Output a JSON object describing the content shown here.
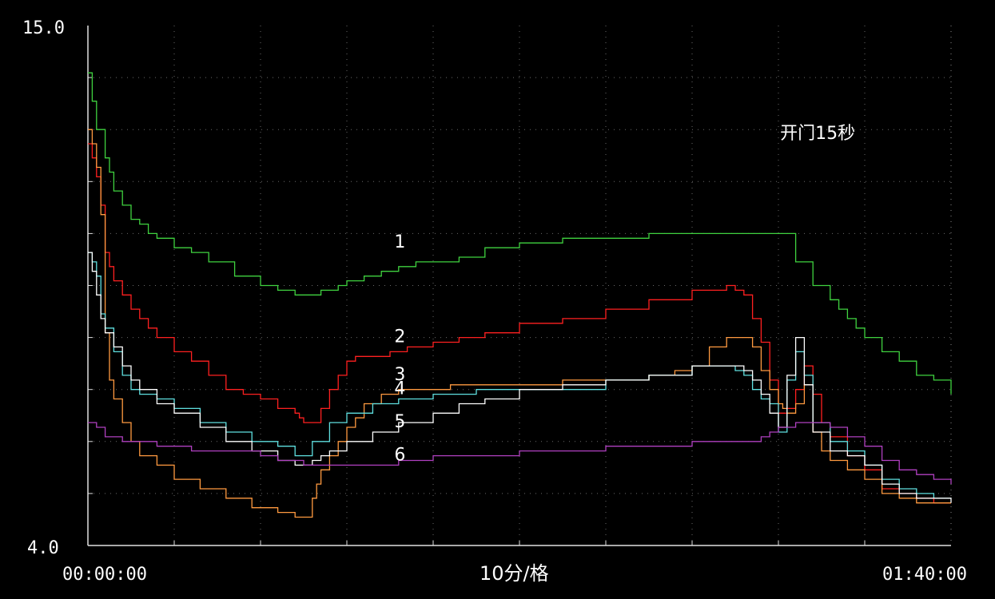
{
  "chart_data": {
    "type": "line",
    "background": "#000000",
    "grid": true,
    "ylim": [
      4.0,
      15.0
    ],
    "xlim_minutes": [
      0,
      100
    ],
    "y_top_label": "15.0",
    "y_bottom_label": "4.0",
    "x_start_label": "00:00:00",
    "x_end_label": "01:40:00",
    "x_center_label": "10分/格",
    "annotation": {
      "text": "开门15秒",
      "x": 80.2,
      "y": 12.6
    },
    "series": [
      {
        "label": "1",
        "color": "#3fd23f",
        "label_pos": [
          35.5,
          10.3
        ],
        "x": [
          0,
          0.5,
          1,
          2,
          2.5,
          3,
          4,
          5,
          6,
          7,
          8,
          10,
          12,
          14,
          17,
          20,
          22,
          24,
          25,
          26,
          27,
          28,
          29,
          30,
          31,
          32,
          34,
          36,
          38,
          40,
          43,
          46,
          50,
          55,
          60,
          65,
          70,
          75,
          80,
          82,
          84,
          86,
          87,
          88,
          89,
          90,
          92,
          94,
          96,
          98,
          100
        ],
        "y": [
          14.0,
          13.4,
          12.8,
          12.2,
          11.9,
          11.5,
          11.2,
          10.9,
          10.8,
          10.6,
          10.5,
          10.3,
          10.2,
          10.0,
          9.7,
          9.5,
          9.4,
          9.3,
          9.3,
          9.3,
          9.4,
          9.4,
          9.5,
          9.6,
          9.6,
          9.7,
          9.8,
          9.9,
          10.0,
          10.0,
          10.1,
          10.3,
          10.4,
          10.5,
          10.5,
          10.6,
          10.6,
          10.6,
          10.6,
          10.0,
          9.5,
          9.2,
          9.0,
          8.8,
          8.6,
          8.4,
          8.1,
          7.9,
          7.6,
          7.5,
          7.2
        ]
      },
      {
        "label": "2",
        "color": "#ff2020",
        "label_pos": [
          35.5,
          8.3
        ],
        "x": [
          0,
          0.5,
          1,
          1.5,
          2,
          2.5,
          3,
          4,
          5,
          6,
          7,
          8,
          10,
          12,
          14,
          16,
          18,
          20,
          22,
          24,
          24.5,
          25,
          25.5,
          26,
          27,
          28,
          29,
          30,
          31,
          33,
          35,
          37,
          40,
          43,
          46,
          50,
          55,
          60,
          65,
          70,
          74,
          75,
          76,
          77,
          78,
          79,
          80,
          81,
          82,
          83,
          84,
          85,
          86,
          88,
          90,
          92,
          94,
          96,
          98,
          100
        ],
        "y": [
          12.5,
          12.2,
          11.8,
          11.2,
          10.2,
          9.9,
          9.6,
          9.3,
          9.0,
          8.8,
          8.6,
          8.4,
          8.1,
          7.9,
          7.6,
          7.3,
          7.2,
          7.1,
          6.9,
          6.8,
          6.7,
          6.6,
          6.6,
          6.6,
          6.9,
          7.3,
          7.6,
          7.9,
          8.0,
          8.0,
          8.1,
          8.2,
          8.3,
          8.4,
          8.5,
          8.7,
          8.8,
          9.0,
          9.2,
          9.4,
          9.5,
          9.4,
          9.3,
          8.8,
          8.3,
          7.5,
          6.8,
          6.9,
          7.3,
          7.8,
          7.2,
          6.6,
          6.3,
          5.9,
          5.6,
          5.2,
          5.1,
          5.0,
          4.9,
          4.9
        ]
      },
      {
        "label": "3",
        "color": "#ff9a40",
        "label_pos": [
          35.5,
          7.5
        ],
        "x": [
          0,
          0.5,
          1,
          1.5,
          2,
          2.5,
          3,
          4,
          5,
          6,
          8,
          10,
          13,
          16,
          19,
          22,
          24,
          25,
          26,
          26.5,
          27,
          28,
          29,
          30,
          31,
          32,
          34,
          36,
          38,
          42,
          46,
          50,
          55,
          60,
          65,
          68,
          70,
          72,
          74,
          75,
          76,
          77,
          78,
          79,
          80,
          80.5,
          81,
          82,
          83,
          84,
          85,
          86,
          88,
          90,
          92,
          94,
          96,
          98,
          100
        ],
        "y": [
          12.8,
          12.5,
          12.0,
          11.0,
          8.5,
          7.5,
          7.1,
          6.6,
          6.2,
          5.9,
          5.7,
          5.4,
          5.2,
          5.0,
          4.8,
          4.7,
          4.6,
          4.6,
          5.0,
          5.3,
          5.6,
          5.9,
          6.2,
          6.5,
          6.7,
          7.0,
          7.2,
          7.3,
          7.3,
          7.4,
          7.4,
          7.4,
          7.5,
          7.5,
          7.6,
          7.7,
          7.8,
          8.2,
          8.4,
          8.4,
          8.4,
          8.2,
          7.7,
          7.3,
          7.0,
          6.9,
          6.8,
          7.0,
          7.4,
          6.4,
          6.0,
          5.8,
          5.6,
          5.4,
          5.1,
          5.0,
          4.9,
          4.9,
          4.9
        ]
      },
      {
        "label": "4",
        "color": "#5fe0e0",
        "label_pos": [
          35.5,
          7.2
        ],
        "x": [
          0,
          0.5,
          1,
          1.5,
          2,
          3,
          4,
          5,
          6,
          8,
          10,
          13,
          16,
          19,
          22,
          24,
          25,
          26,
          28,
          30,
          33,
          36,
          40,
          45,
          50,
          55,
          60,
          65,
          70,
          75,
          76,
          77,
          78,
          79,
          80,
          81,
          82,
          83,
          84,
          86,
          88,
          90,
          92,
          94,
          96,
          98,
          100
        ],
        "y": [
          10.2,
          10.0,
          9.7,
          8.9,
          8.6,
          8.1,
          7.6,
          7.3,
          7.2,
          7.1,
          6.9,
          6.6,
          6.4,
          6.2,
          6.1,
          5.9,
          5.9,
          6.2,
          6.6,
          6.8,
          7.0,
          7.1,
          7.2,
          7.3,
          7.3,
          7.3,
          7.5,
          7.6,
          7.8,
          7.7,
          7.6,
          7.3,
          7.1,
          7.0,
          6.4,
          7.5,
          8.1,
          7.6,
          6.6,
          6.2,
          6.0,
          5.7,
          5.4,
          5.2,
          5.1,
          5.0,
          5.0
        ]
      },
      {
        "label": "5",
        "color": "#ffffff",
        "label_pos": [
          35.5,
          6.5
        ],
        "x": [
          0,
          0.5,
          1,
          1.5,
          2,
          3,
          4,
          5,
          6,
          8,
          10,
          13,
          16,
          19,
          22,
          24,
          25,
          26,
          27,
          28,
          30,
          33,
          36,
          40,
          43,
          46,
          50,
          55,
          60,
          65,
          70,
          75,
          76,
          77,
          78,
          79,
          80,
          81,
          82,
          83,
          84,
          86,
          88,
          90,
          92,
          94,
          96,
          98,
          100
        ],
        "y": [
          10.2,
          9.8,
          9.3,
          8.8,
          8.5,
          8.2,
          7.8,
          7.5,
          7.3,
          7.0,
          6.8,
          6.5,
          6.2,
          6.0,
          5.8,
          5.7,
          5.7,
          5.8,
          5.9,
          6.0,
          6.2,
          6.4,
          6.6,
          6.8,
          7.0,
          7.1,
          7.3,
          7.4,
          7.5,
          7.6,
          7.8,
          7.8,
          7.7,
          7.5,
          7.2,
          6.8,
          6.5,
          7.6,
          8.4,
          7.4,
          6.4,
          6.0,
          5.9,
          5.7,
          5.3,
          5.1,
          5.0,
          5.0,
          4.9
        ]
      },
      {
        "label": "6",
        "color": "#b040c0",
        "label_pos": [
          35.5,
          5.8
        ],
        "x": [
          0,
          1,
          2,
          4,
          6,
          8,
          10,
          12,
          16,
          20,
          22,
          25,
          28,
          30,
          32,
          34,
          36,
          38,
          40,
          45,
          50,
          55,
          60,
          65,
          70,
          75,
          78,
          79,
          80,
          82,
          84,
          86,
          88,
          90,
          92,
          94,
          96,
          98,
          100
        ],
        "y": [
          6.6,
          6.5,
          6.3,
          6.2,
          6.2,
          6.1,
          6.1,
          6.0,
          6.0,
          5.9,
          5.8,
          5.7,
          5.7,
          5.7,
          5.7,
          5.7,
          5.8,
          5.8,
          5.9,
          5.9,
          6.0,
          6.0,
          6.1,
          6.1,
          6.2,
          6.2,
          6.3,
          6.4,
          6.5,
          6.6,
          6.6,
          6.5,
          6.3,
          6.1,
          5.8,
          5.6,
          5.5,
          5.4,
          5.3
        ]
      }
    ]
  }
}
